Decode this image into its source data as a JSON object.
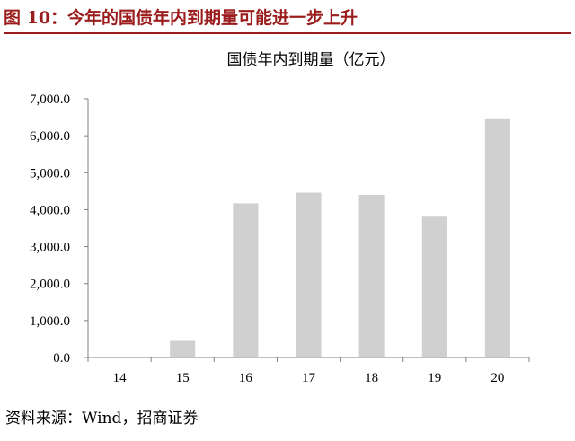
{
  "figure": {
    "title": "图 10：今年的国债年内到期量可能进一步上升",
    "source": "资料来源：Wind，招商证券"
  },
  "colors": {
    "title_red": "#9b1c1c",
    "bar": "#d0d0d0",
    "axis": "#808080"
  },
  "chart_data": {
    "type": "bar",
    "title": "国债年内到期量（亿元）",
    "categories": [
      "14",
      "15",
      "16",
      "17",
      "18",
      "19",
      "20"
    ],
    "values": [
      0,
      450,
      4170,
      4460,
      4400,
      3810,
      6470
    ],
    "yticks": [
      "0.0",
      "1,000.0",
      "2,000.0",
      "3,000.0",
      "4,000.0",
      "5,000.0",
      "6,000.0",
      "7,000.0"
    ],
    "ylim": [
      0,
      7000
    ],
    "xlabel": "",
    "ylabel": "",
    "grid": false,
    "legend": false
  }
}
